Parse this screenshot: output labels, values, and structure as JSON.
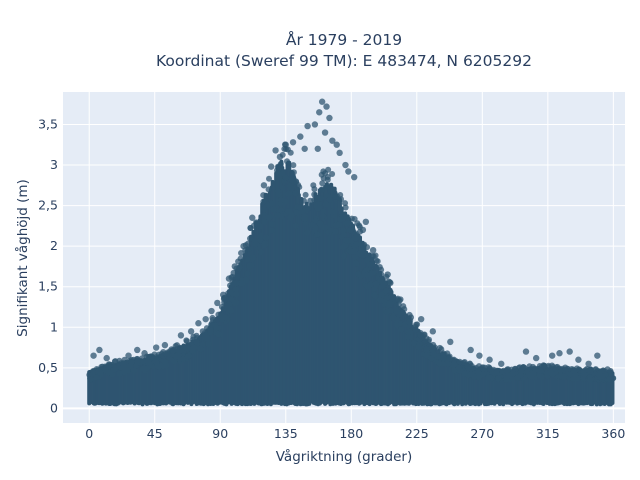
{
  "chart_data": {
    "type": "scatter",
    "title": "År 1979 - 2019",
    "subtitle": "Koordinat (Sweref 99 TM): E 483474, N 6205292",
    "xlabel": "Vågriktning (grader)",
    "ylabel": "Signifikant våghöjd (m)",
    "xlim": [
      -18,
      368
    ],
    "ylim": [
      -0.18,
      3.9
    ],
    "x_ticks": [
      0,
      45,
      90,
      135,
      180,
      225,
      270,
      315,
      360
    ],
    "x_tick_labels": [
      "0",
      "45",
      "90",
      "135",
      "180",
      "225",
      "270",
      "315",
      "360"
    ],
    "y_ticks": [
      0,
      0.5,
      1,
      1.5,
      2,
      2.5,
      3,
      3.5
    ],
    "y_tick_labels": [
      "0",
      "0,5",
      "1",
      "1,5",
      "2",
      "2,5",
      "3",
      "3,5"
    ],
    "grid": true,
    "plot_background": "#e5ecf6",
    "marker_color": "#2f5570",
    "series": [
      {
        "envelope": {
          "direction": [
            0,
            20,
            45,
            60,
            75,
            90,
            100,
            110,
            120,
            125,
            130,
            135,
            140,
            145,
            150,
            155,
            160,
            165,
            170,
            175,
            180,
            190,
            200,
            210,
            220,
            230,
            240,
            250,
            260,
            270,
            285,
            300,
            315,
            330,
            345,
            360
          ],
          "height_max": [
            0.45,
            0.55,
            0.62,
            0.72,
            0.85,
            1.15,
            1.6,
            2.05,
            2.55,
            2.75,
            2.95,
            3.05,
            2.9,
            2.55,
            2.5,
            2.6,
            2.7,
            2.75,
            2.65,
            2.4,
            2.25,
            1.95,
            1.65,
            1.35,
            1.1,
            0.85,
            0.7,
            0.6,
            0.52,
            0.48,
            0.45,
            0.48,
            0.5,
            0.47,
            0.45,
            0.45
          ],
          "height_min": 0.05
        },
        "outliers": [
          [
            160,
            3.78
          ],
          [
            163,
            3.72
          ],
          [
            158,
            3.65
          ],
          [
            165,
            3.58
          ],
          [
            155,
            3.5
          ],
          [
            150,
            3.48
          ],
          [
            145,
            3.35
          ],
          [
            162,
            3.4
          ],
          [
            167,
            3.3
          ],
          [
            170,
            3.25
          ],
          [
            140,
            3.28
          ],
          [
            172,
            3.15
          ],
          [
            157,
            3.2
          ],
          [
            148,
            3.2
          ],
          [
            135,
            3.25
          ],
          [
            128,
            3.18
          ],
          [
            131,
            3.1
          ],
          [
            176,
            3.0
          ],
          [
            178,
            2.92
          ],
          [
            182,
            2.85
          ],
          [
            125,
            2.98
          ],
          [
            120,
            2.75
          ],
          [
            112,
            2.35
          ],
          [
            106,
            2.0
          ],
          [
            100,
            1.75
          ],
          [
            96,
            1.6
          ],
          [
            190,
            2.3
          ],
          [
            195,
            1.95
          ],
          [
            205,
            1.65
          ],
          [
            212,
            1.35
          ],
          [
            220,
            1.15
          ],
          [
            228,
            1.1
          ],
          [
            236,
            0.95
          ],
          [
            248,
            0.82
          ],
          [
            262,
            0.72
          ],
          [
            268,
            0.65
          ],
          [
            275,
            0.6
          ],
          [
            283,
            0.55
          ],
          [
            300,
            0.7
          ],
          [
            307,
            0.62
          ],
          [
            318,
            0.65
          ],
          [
            323,
            0.68
          ],
          [
            330,
            0.7
          ],
          [
            336,
            0.6
          ],
          [
            343,
            0.55
          ],
          [
            349,
            0.65
          ],
          [
            356,
            0.48
          ],
          [
            3,
            0.65
          ],
          [
            7,
            0.72
          ],
          [
            12,
            0.62
          ],
          [
            18,
            0.58
          ],
          [
            27,
            0.65
          ],
          [
            33,
            0.72
          ],
          [
            38,
            0.68
          ],
          [
            46,
            0.75
          ],
          [
            52,
            0.78
          ],
          [
            58,
            0.72
          ],
          [
            63,
            0.9
          ],
          [
            70,
            0.95
          ],
          [
            75,
            1.05
          ],
          [
            80,
            1.1
          ],
          [
            84,
            1.2
          ],
          [
            88,
            1.3
          ],
          [
            92,
            1.4
          ],
          [
            183,
            2.1
          ],
          [
            188,
            2.2
          ]
        ]
      }
    ]
  }
}
